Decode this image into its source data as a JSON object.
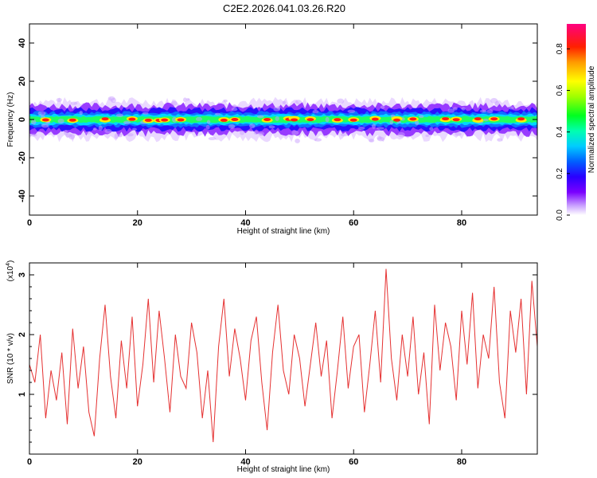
{
  "title": "C2E2.2026.041.03.26.R20",
  "chart_data": [
    {
      "type": "heatmap",
      "xlabel": "Height of straight line (km)",
      "ylabel": "Frequency (Hz)",
      "xlim": [
        0,
        94
      ],
      "ylim": [
        -50,
        50
      ],
      "xticks": [
        "0",
        "20",
        "40",
        "60",
        "80"
      ],
      "yticks": [
        "40",
        "20",
        "0",
        "-20",
        "-40"
      ],
      "colorbar": {
        "label": "Normalized spectral amplitude",
        "range": [
          0,
          0.92
        ],
        "ticks": [
          "0.0",
          "0.2",
          "0.4",
          "0.6",
          "0.8"
        ]
      },
      "band_center_hz": 0,
      "band_halfwidth_hz": 5,
      "peak_locations_km": [
        3,
        8,
        14,
        19,
        22,
        24,
        25,
        28,
        36,
        38,
        44,
        48,
        49,
        52,
        57,
        60,
        64,
        68,
        71,
        77,
        79,
        83,
        86,
        91
      ]
    },
    {
      "type": "line",
      "xlabel": "Height of straight line (km)",
      "ylabel": "SNR (10 * v/v)",
      "scale_label_base": "(x10",
      "scale_label_exp": "4",
      "scale_label_end": ")",
      "xlim": [
        0,
        94
      ],
      "ylim": [
        0,
        3.2
      ],
      "xticks": [
        "0",
        "20",
        "40",
        "60",
        "80"
      ],
      "yticks": [
        "1",
        "2",
        "3"
      ],
      "line_color": "#e53030",
      "x": [
        0,
        1,
        2,
        3,
        4,
        5,
        6,
        7,
        8,
        9,
        10,
        11,
        12,
        13,
        14,
        15,
        16,
        17,
        18,
        19,
        20,
        21,
        22,
        23,
        24,
        25,
        26,
        27,
        28,
        29,
        30,
        31,
        32,
        33,
        34,
        35,
        36,
        37,
        38,
        39,
        40,
        41,
        42,
        43,
        44,
        45,
        46,
        47,
        48,
        49,
        50,
        51,
        52,
        53,
        54,
        55,
        56,
        57,
        58,
        59,
        60,
        61,
        62,
        63,
        64,
        65,
        66,
        67,
        68,
        69,
        70,
        71,
        72,
        73,
        74,
        75,
        76,
        77,
        78,
        79,
        80,
        81,
        82,
        83,
        84,
        85,
        86,
        87,
        88,
        89,
        90,
        91,
        92,
        93,
        94
      ],
      "values": [
        1.5,
        1.2,
        2.0,
        0.6,
        1.4,
        0.9,
        1.7,
        0.5,
        2.1,
        1.1,
        1.8,
        0.7,
        0.3,
        1.6,
        2.5,
        1.3,
        0.6,
        1.9,
        1.1,
        2.3,
        0.8,
        1.5,
        2.6,
        1.2,
        2.4,
        1.6,
        0.7,
        2.0,
        1.3,
        1.1,
        2.2,
        1.7,
        0.6,
        1.4,
        0.2,
        1.8,
        2.6,
        1.3,
        2.1,
        1.6,
        0.9,
        1.9,
        2.3,
        1.2,
        0.4,
        1.7,
        2.5,
        1.4,
        1.0,
        2.0,
        1.6,
        0.8,
        1.5,
        2.2,
        1.3,
        1.9,
        0.6,
        1.4,
        2.3,
        1.1,
        1.8,
        2.0,
        0.7,
        1.5,
        2.4,
        1.2,
        3.1,
        1.6,
        0.9,
        2.0,
        1.3,
        2.3,
        1.0,
        1.7,
        0.5,
        2.5,
        1.4,
        2.2,
        1.8,
        0.9,
        2.4,
        1.5,
        2.7,
        1.1,
        2.0,
        1.6,
        2.8,
        1.2,
        0.6,
        2.4,
        1.7,
        2.6,
        1.0,
        2.9,
        1.8
      ]
    }
  ]
}
